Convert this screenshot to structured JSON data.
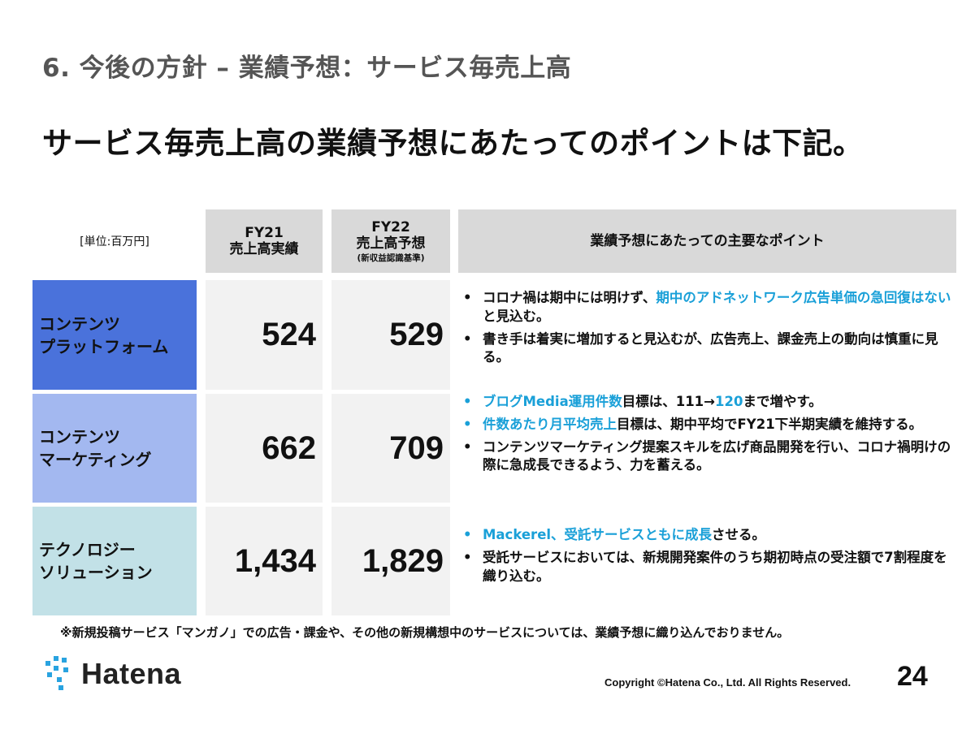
{
  "section_title": "6. 今後の方針 – 業績予想：サービス毎売上高",
  "headline": "サービス毎売上高の業績予想にあたってのポイントは下記。",
  "table": {
    "unit_label": "[単位:百万円]",
    "headers": {
      "fy21_line1": "FY21",
      "fy21_line2": "売上高実績",
      "fy22_line1": "FY22",
      "fy22_line2": "売上高予想",
      "fy22_note": "(新収益認識基準)",
      "points": "業績予想にあたっての主要なポイント"
    },
    "rows": [
      {
        "segment_line1": "コンテンツ",
        "segment_line2": "プラットフォーム",
        "fy21": "524",
        "fy22": "529",
        "points": [
          {
            "pre": "コロナ禍は期中には明けず、",
            "hl": "期中のアドネットワーク広告単価の急回復はない",
            "post": "と見込む。"
          },
          {
            "pre": "書き手は着実に増加すると見込むが、広告売上、課金売上の動向は慎重に見る。",
            "hl": "",
            "post": ""
          }
        ],
        "color": "#4a72db"
      },
      {
        "segment_line1": "コンテンツ",
        "segment_line2": "マーケティング",
        "fy21": "662",
        "fy22": "709",
        "points": [
          {
            "pre": "",
            "hl": "ブログMedia運用件数",
            "post": "目標は、111→",
            "hl2": "120",
            "post2": "まで増やす。"
          },
          {
            "pre": "",
            "hl": "件数あたり月平均売上",
            "post": "目標は、期中平均でFY21下半期実績を維持する。"
          },
          {
            "pre": "コンテンツマーケティング提案スキルを広げ商品開発を行い、コロナ禍明けの際に急成長できるよう、力を蓄える。",
            "hl": "",
            "post": ""
          }
        ],
        "color": "#a3b8f0"
      },
      {
        "segment_line1": "テクノロジー",
        "segment_line2": "ソリューション",
        "fy21": "1,434",
        "fy22": "1,829",
        "points": [
          {
            "pre": "",
            "hl": "Mackerel、受託サービスともに成長",
            "post": "させる。"
          },
          {
            "pre": "受託サービスにおいては、新規開発案件のうち期初時点の受注額で7割程度を織り込む。",
            "hl": "",
            "post": ""
          }
        ],
        "color": "#c2e1e7"
      }
    ]
  },
  "footnote": "※新規投稿サービス「マンガノ」での広告・課金や、その他の新規構想中のサービスについては、業績予想に織り込んでおりません。",
  "footer": {
    "logo_text": "Hatena",
    "copyright": "Copyright ©Hatena Co., Ltd. All Rights Reserved.",
    "page_number": "24"
  },
  "colors": {
    "highlight": "#1aa0d8",
    "header_bg": "#d9d9d9",
    "value_bg": "#f2f2f2",
    "logo_accent": "#29a3e0"
  }
}
